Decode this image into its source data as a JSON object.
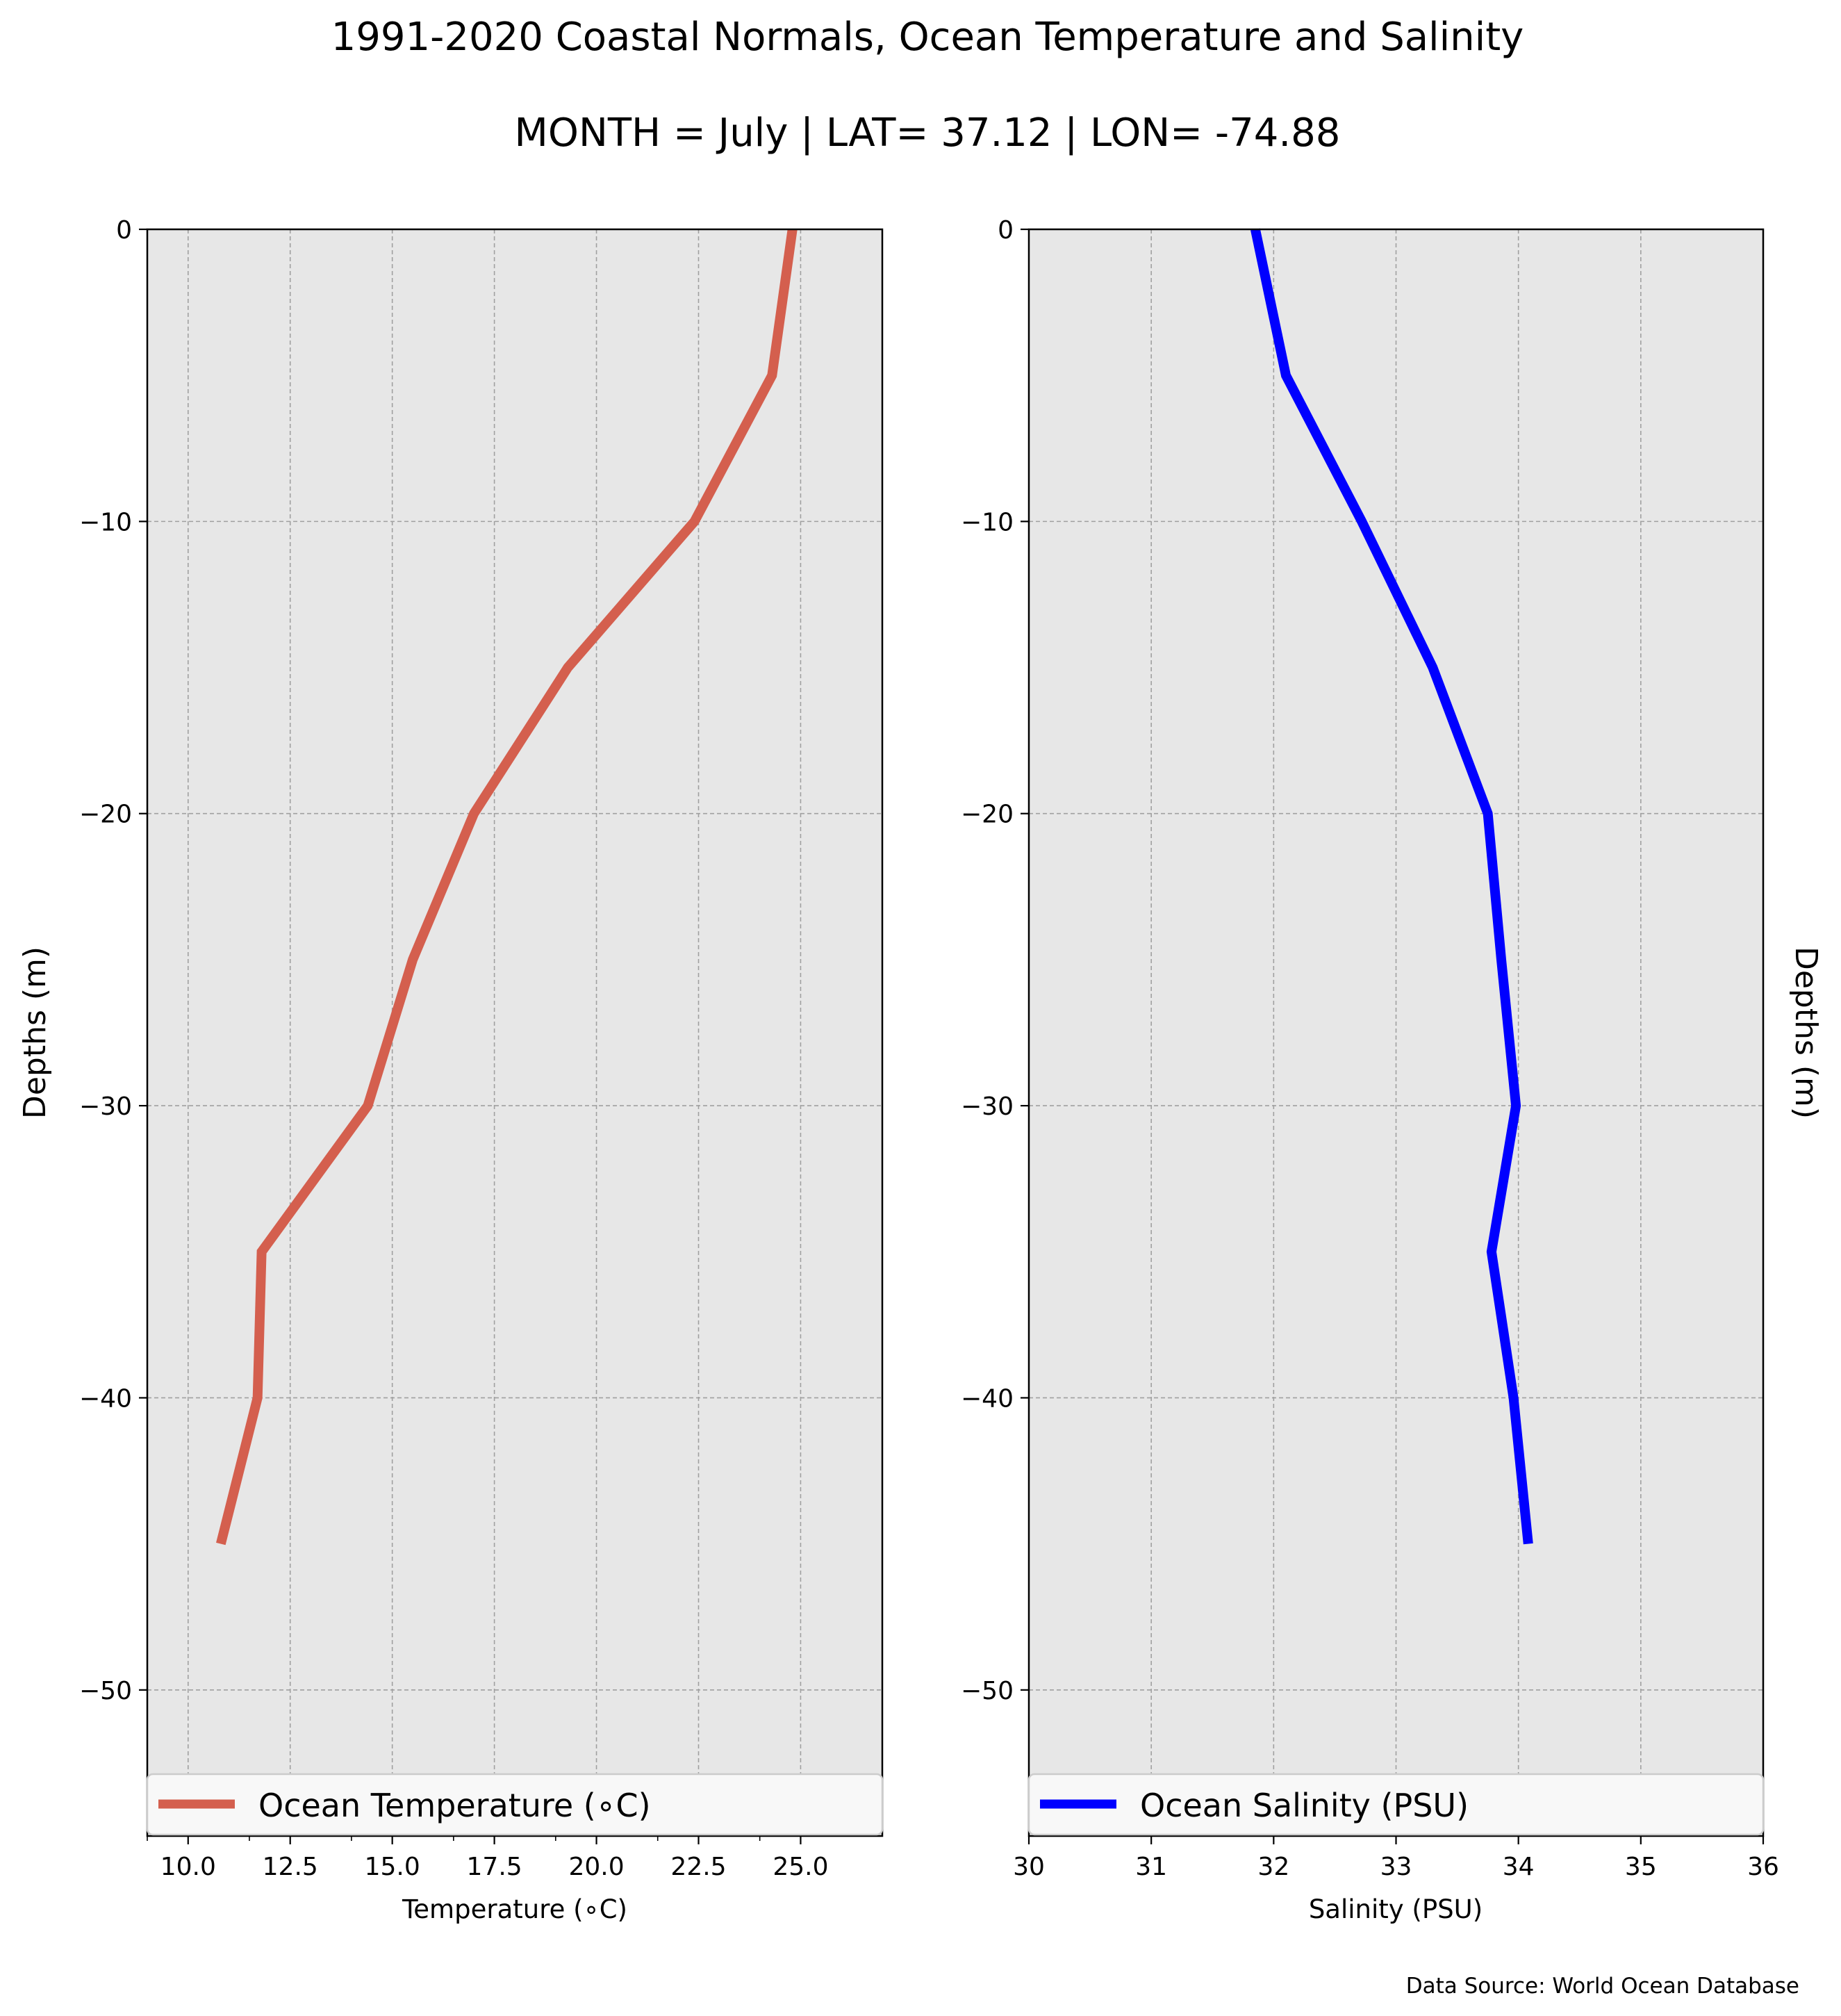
{
  "title": "1991-2020 Coastal Normals, Ocean Temperature and Salinity",
  "subtitle": "MONTH = July | LAT= 37.12 | LON= -74.88",
  "footer": "Data Source: World Ocean Database",
  "chart_data": [
    {
      "type": "line",
      "xlabel": "Temperature (∘C)",
      "ylabel": "Depths (m)",
      "xlim": [
        9.0,
        27.0
      ],
      "ylim": [
        -55,
        0
      ],
      "xticks": [
        10.0,
        12.5,
        15.0,
        17.5,
        20.0,
        22.5,
        25.0
      ],
      "xtick_labels": [
        "10.0",
        "12.5",
        "15.0",
        "17.5",
        "20.0",
        "22.5",
        "25.0"
      ],
      "xminor": [
        9.0,
        11.5,
        14.0,
        16.5,
        19.0,
        21.5,
        24.0
      ],
      "yticks": [
        0,
        -10,
        -20,
        -30,
        -40,
        -50
      ],
      "ytick_labels": [
        "0",
        "−10",
        "−20",
        "−30",
        "−40",
        "−50"
      ],
      "grid": true,
      "legend": "bottom",
      "series": [
        {
          "name": "Ocean Temperature (∘C)",
          "color": "#d45f4e",
          "depths": [
            0,
            -5,
            -10,
            -15,
            -20,
            -25,
            -30,
            -35,
            -40,
            -45
          ],
          "values": [
            24.8,
            24.3,
            22.4,
            19.3,
            17.0,
            15.5,
            14.4,
            11.8,
            11.7,
            10.8
          ]
        }
      ]
    },
    {
      "type": "line",
      "xlabel": "Salinity (PSU)",
      "ylabel": "Depths (m)",
      "xlim": [
        30,
        36
      ],
      "ylim": [
        -55,
        0
      ],
      "xticks": [
        30,
        31,
        32,
        33,
        34,
        35,
        36
      ],
      "xtick_labels": [
        "30",
        "31",
        "32",
        "33",
        "34",
        "35",
        "36"
      ],
      "xminor": [],
      "yticks": [
        0,
        -10,
        -20,
        -30,
        -40,
        -50
      ],
      "ytick_labels": [
        "0",
        "−10",
        "−20",
        "−30",
        "−40",
        "−50"
      ],
      "grid": true,
      "legend": "bottom",
      "series": [
        {
          "name": "Ocean Salinity (PSU)",
          "color": "#0000ff",
          "depths": [
            0,
            -5,
            -10,
            -15,
            -20,
            -25,
            -30,
            -35,
            -40,
            -45
          ],
          "values": [
            31.85,
            32.1,
            32.72,
            33.3,
            33.75,
            33.86,
            33.98,
            33.78,
            33.96,
            34.08
          ]
        }
      ]
    }
  ]
}
